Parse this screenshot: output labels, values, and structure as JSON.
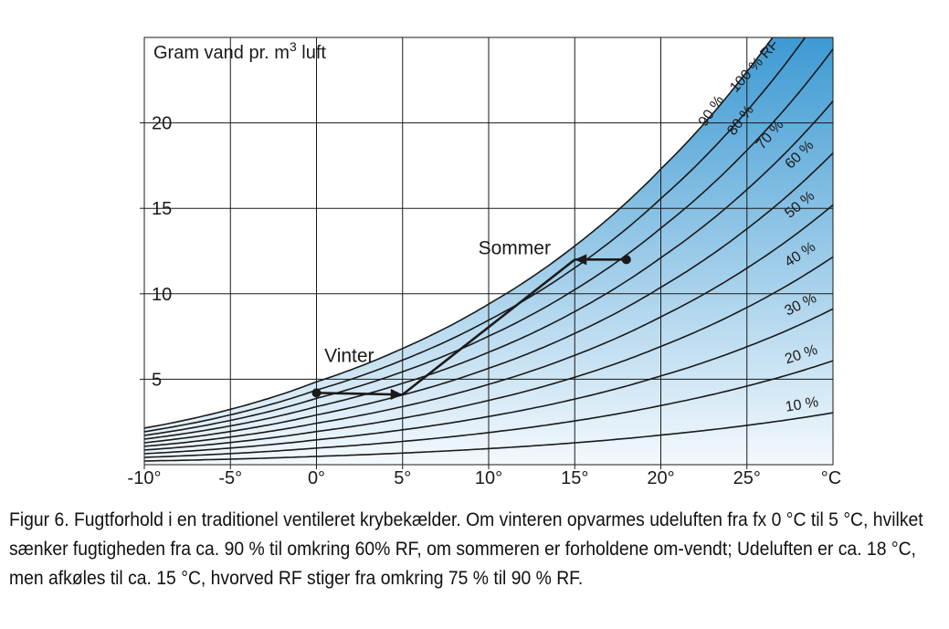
{
  "chart_data": {
    "type": "line",
    "ylabel_text": "Gram vand pr. m",
    "ylabel_sup": "3",
    "ylabel_tail": " luft",
    "x_ticks": [
      {
        "value": -10,
        "label": "-10°"
      },
      {
        "value": -5,
        "label": "-5°"
      },
      {
        "value": 0,
        "label": "0°"
      },
      {
        "value": 5,
        "label": "5°"
      },
      {
        "value": 10,
        "label": "10°"
      },
      {
        "value": 15,
        "label": "15°"
      },
      {
        "value": 20,
        "label": "20°"
      },
      {
        "value": 25,
        "label": "25°"
      }
    ],
    "x_unit_label": "°C",
    "y_ticks": [
      {
        "value": 5,
        "label": "5"
      },
      {
        "value": 10,
        "label": "10"
      },
      {
        "value": 15,
        "label": "15"
      },
      {
        "value": 20,
        "label": "20"
      }
    ],
    "xlim": [
      -10,
      30
    ],
    "ylim": [
      0,
      25
    ],
    "grid": true,
    "saturation_curve": {
      "x": [
        -10,
        -5,
        0,
        5,
        10,
        15,
        20,
        25,
        30
      ],
      "y": [
        2.14,
        3.24,
        4.85,
        6.8,
        9.4,
        12.8,
        17.3,
        23.0,
        30.4
      ]
    },
    "rh_series": [
      {
        "rh": 100,
        "label": "100 % RF"
      },
      {
        "rh": 90,
        "label": "90 %"
      },
      {
        "rh": 80,
        "label": "80 %"
      },
      {
        "rh": 70,
        "label": "70 %"
      },
      {
        "rh": 60,
        "label": "60 %"
      },
      {
        "rh": 50,
        "label": "50 %"
      },
      {
        "rh": 40,
        "label": "40 %"
      },
      {
        "rh": 30,
        "label": "30 %"
      },
      {
        "rh": 20,
        "label": "20 %"
      },
      {
        "rh": 10,
        "label": "10 %"
      }
    ],
    "annotations": [
      {
        "text": "Vinter",
        "x": 1.9,
        "y": 6.0
      },
      {
        "text": "Sommer",
        "x": 11.5,
        "y": 12.3
      }
    ],
    "paths": [
      {
        "name": "winter-path",
        "points": [
          [
            0,
            4.2
          ],
          [
            5,
            4.1
          ]
        ],
        "start_marker": true,
        "end_arrow": true
      },
      {
        "name": "connector-path",
        "points": [
          [
            5,
            4.1
          ],
          [
            15,
            12.0
          ]
        ],
        "start_marker": false,
        "end_arrow": false
      },
      {
        "name": "summer-path",
        "points": [
          [
            18,
            12.0
          ],
          [
            15,
            12.0
          ]
        ],
        "start_marker": true,
        "end_arrow": true
      }
    ],
    "colors": {
      "fill_light": "#f4f9fd",
      "fill_dark": "#3d9ad3",
      "line": "#1a1a1a",
      "grid": "#1a1a1a"
    }
  },
  "caption": "Figur 6. Fugtforhold i en traditionel ventileret krybekælder. Om vinteren opvarmes udeluften fra fx 0 °C til 5 °C, hvilket sænker fugtigheden fra ca. 90 % til omkring 60% RF, om sommeren er forholdene om-vendt; Udeluften er ca. 18 °C, men afkøles til ca. 15 °C, hvorved RF stiger fra omkring 75 % til 90 % RF."
}
